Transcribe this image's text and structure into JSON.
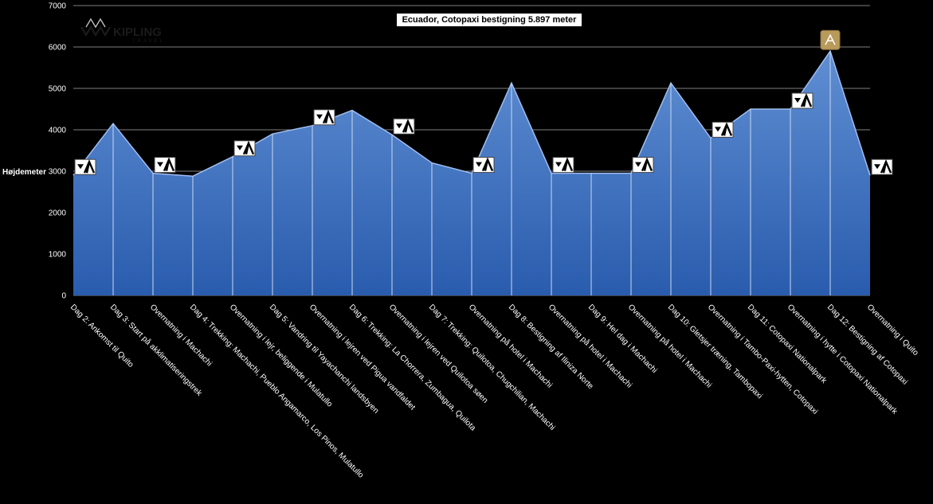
{
  "chart_data": {
    "type": "area",
    "title": "Ecuador, Cotopaxi bestigning 5.897 meter",
    "ylabel": "Højdemeter",
    "ylim": [
      0,
      7000
    ],
    "yticks": [
      0,
      1000,
      2000,
      3000,
      4000,
      5000,
      6000,
      7000
    ],
    "grid": true,
    "colors": {
      "fill_top": "#5f8ed2",
      "fill_bottom": "#2a5cae",
      "line": "#9fbdf0"
    },
    "categories": [
      "Dag 2: Ankomst til Quito",
      "Dag 3: Start på akklimatiseringstrek",
      "Overnatning i Machachi",
      "Dag 4: Trekking: Machachi, Pueblo Angamarco, Los Pinos, Mulatullo",
      "Overnatning i lejr, beliggende i Mulatullo",
      "Dag 5: Vandring til Yayachanchi landsbyen",
      "Overnatning i lejren ved Pigua vandfaldet",
      "Dag 6: Trekking: La Chorrera, Zumbagua, Quilota",
      "Overnatning i lejren ved Quilotoa søen",
      "Dag 7: Trekking: Quilotoa, Chugchilian, Machachi",
      "Overnatning på hotel i Machachi",
      "Dag 8: Bestigning af Iliniza Norte",
      "Overnatning på hotel i Machachi",
      "Dag 9: Hel dag i Machachi",
      "Overnatning på hotel i Machachi",
      "Dag 10: Gletsjer træning, Tambopaxi",
      "Overnatning i Tambo-Paxi-hytten, Cotopaxi",
      "Dag 11: Cotopaxi Nationalpark",
      "Overnatning i hytte i Cotopaxi Nationalpark",
      "Dag 12: Bestigning af Cotopaxi",
      "Overnatning i Quito"
    ],
    "values": [
      2900,
      4150,
      2950,
      2880,
      3350,
      3900,
      4100,
      4470,
      3880,
      3200,
      2950,
      5130,
      2950,
      2950,
      2950,
      5130,
      3800,
      4500,
      4500,
      5900,
      2900
    ],
    "camp_icon_points": [
      0,
      2,
      4,
      6,
      8,
      10,
      12,
      14,
      16,
      18,
      20
    ],
    "summit_icon_point": 19
  },
  "logo": {
    "name": "KIPLING",
    "sub": "TRAVEL"
  }
}
